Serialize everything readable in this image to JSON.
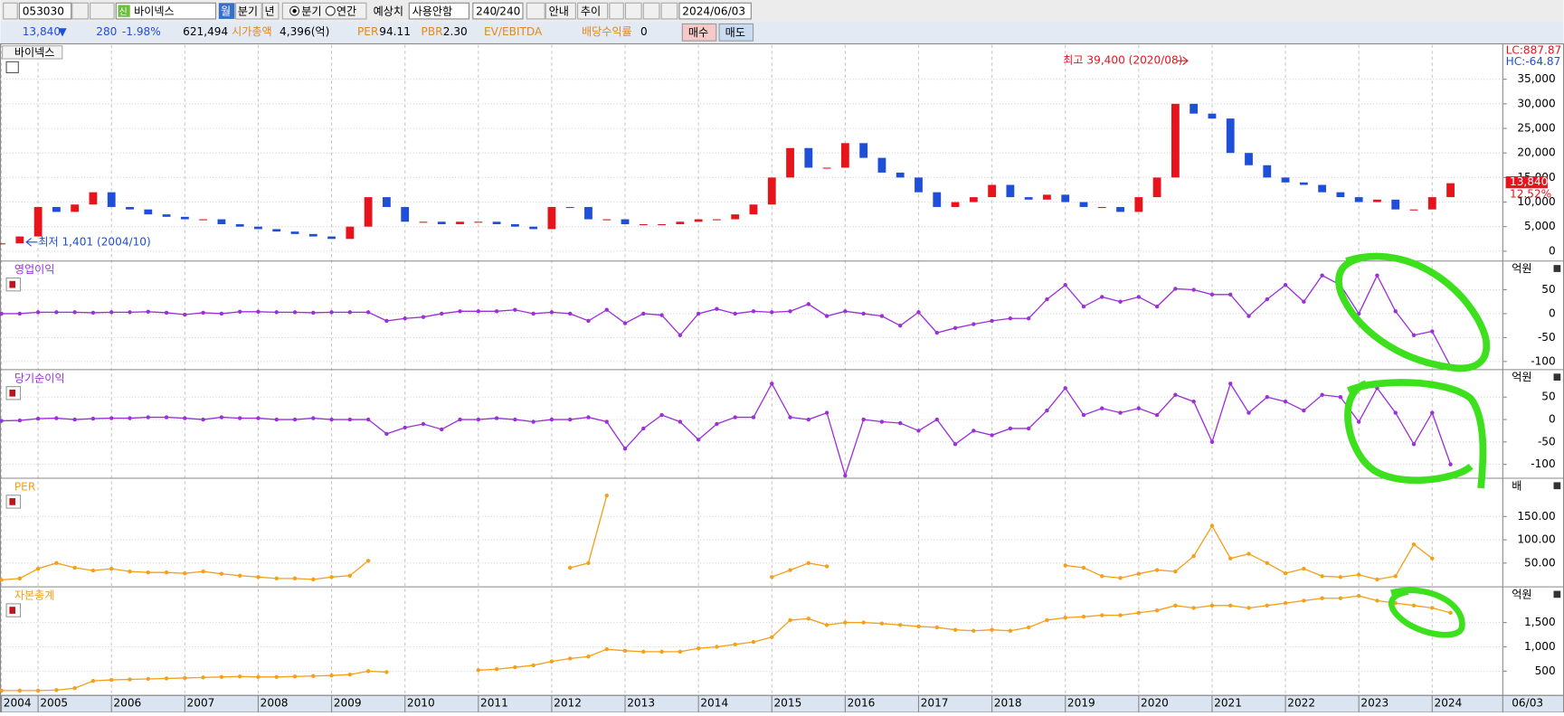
{
  "toolbar": {
    "code": "053030",
    "badge": "신",
    "name": "바이넥스",
    "period_buttons": [
      "월",
      "분기",
      "년"
    ],
    "radio": [
      "분기",
      "연간"
    ],
    "estimate_label": "예상치",
    "estimate_value": "사용안함",
    "count": "240",
    "count_total": "/240",
    "buttons": [
      "안내",
      "추이"
    ],
    "date": "2024/06/03"
  },
  "quote": {
    "price": "13,840",
    "arrow": "▼",
    "change": "280",
    "change_pct": "-1.98%",
    "volume": "621,494",
    "market_cap_label": "시가총액",
    "market_cap": "4,396(억)",
    "per_label": "PER",
    "per": "94.11",
    "pbr_label": "PBR",
    "pbr": "2.30",
    "ev_label": "EV/EBITDA",
    "div_label": "배당수익률",
    "div": "0",
    "buy": "매수",
    "sell": "매도"
  },
  "chart_data": [
    {
      "type": "candlestick",
      "title": "바이넥스",
      "up_color": "#e8141c",
      "down_color": "#1f4fd8",
      "annotations": [
        "최고 39,400 (2020/08)",
        "최저 1,401 (2004/10)"
      ],
      "lc_label": "LC:887.87",
      "hc_label": "HC:-64.87",
      "last_label": "13,840",
      "last_pct": "12.52%",
      "values": [
        1600,
        3000,
        9000,
        8000,
        9500,
        12000,
        9000,
        8500,
        7500,
        7000,
        6500,
        6500,
        5500,
        5000,
        4500,
        4000,
        3500,
        3000,
        2500,
        5000,
        11000,
        9000,
        6000,
        6000,
        5500,
        6000,
        6000,
        5500,
        5000,
        4500,
        9000,
        9000,
        6500,
        6500,
        5500,
        5500,
        5500,
        6000,
        6500,
        6500,
        7500,
        9500,
        15000,
        21000,
        17000,
        17000,
        22000,
        19000,
        16000,
        15000,
        12000,
        9000,
        10000,
        11000,
        13500,
        11000,
        10500,
        11500,
        10000,
        9000,
        9000,
        8000,
        11000,
        15000,
        30000,
        28000,
        27000,
        20000,
        17500,
        15000,
        14000,
        13500,
        12000,
        11000,
        10000,
        10500,
        8500,
        8500,
        11000,
        13840
      ],
      "ylim": [
        -2000,
        42000
      ],
      "yticks": [
        0,
        {
          "value": 5000,
          "label": "5,000"
        },
        {
          "value": 10000,
          "label": "10,000"
        },
        {
          "value": 15000,
          "label": "15,000"
        },
        {
          "value": 20000,
          "label": "20,000"
        },
        {
          "value": 25000,
          "label": "25,000"
        },
        {
          "value": 30000,
          "label": "30,000"
        },
        {
          "value": 35000,
          "label": "35,000"
        }
      ],
      "grid": true
    },
    {
      "type": "line",
      "title": "영업이익",
      "unit": "억원",
      "color": "#9b30d9",
      "values": [
        0,
        0,
        3,
        3,
        3,
        2,
        3,
        3,
        4,
        2,
        -2,
        2,
        0,
        4,
        4,
        3,
        3,
        2,
        3,
        3,
        3,
        -15,
        -10,
        -7,
        0,
        5,
        5,
        5,
        8,
        0,
        3,
        0,
        -15,
        8,
        -20,
        0,
        -3,
        -45,
        0,
        10,
        0,
        5,
        3,
        5,
        20,
        -5,
        5,
        0,
        -5,
        -25,
        3,
        -40,
        -30,
        -22,
        -15,
        -10,
        -10,
        30,
        60,
        15,
        35,
        25,
        35,
        15,
        52,
        50,
        40,
        40,
        -5,
        30,
        60,
        25,
        80,
        60,
        0,
        80,
        5,
        -45,
        -37,
        -110
      ],
      "ylim": [
        -115,
        108
      ],
      "yticks": [
        50,
        0,
        -50,
        -100
      ],
      "grid": true
    },
    {
      "type": "line",
      "title": "당기순이익",
      "unit": "억원",
      "color": "#9b30d9",
      "values": [
        -3,
        -2,
        2,
        3,
        0,
        2,
        3,
        3,
        5,
        5,
        3,
        0,
        5,
        3,
        3,
        0,
        0,
        3,
        0,
        0,
        0,
        -32,
        -18,
        -10,
        -22,
        0,
        0,
        3,
        0,
        -5,
        0,
        0,
        5,
        -5,
        -65,
        -20,
        10,
        -5,
        -45,
        -10,
        5,
        5,
        80,
        5,
        0,
        15,
        -125,
        0,
        -5,
        -8,
        -25,
        0,
        -55,
        -25,
        -35,
        -20,
        -20,
        20,
        70,
        10,
        25,
        15,
        25,
        10,
        55,
        40,
        -50,
        80,
        15,
        50,
        40,
        20,
        55,
        50,
        -5,
        70,
        15,
        -55,
        15,
        -100
      ],
      "ylim": [
        -131,
        109
      ],
      "yticks": [
        50,
        0,
        -50,
        -100
      ],
      "grid": true
    },
    {
      "type": "line",
      "title": "PER",
      "unit": "배",
      "color": "#f5a01a",
      "values": [
        14,
        17,
        38,
        50,
        40,
        34,
        38,
        32,
        30,
        30,
        28,
        32,
        27,
        23,
        20,
        17,
        17,
        15,
        20,
        23,
        55,
        null,
        null,
        null,
        null,
        null,
        null,
        null,
        null,
        null,
        null,
        40,
        50,
        195,
        null,
        null,
        null,
        null,
        null,
        null,
        null,
        null,
        20,
        35,
        50,
        43,
        null,
        null,
        null,
        null,
        null,
        null,
        null,
        null,
        null,
        null,
        null,
        null,
        45,
        40,
        22,
        18,
        27,
        35,
        32,
        65,
        130,
        60,
        70,
        50,
        28,
        38,
        22,
        20,
        25,
        15,
        22,
        90,
        60,
        null
      ],
      "ylim": [
        -1,
        230
      ],
      "yticks": [
        {
          "value": 50,
          "label": "50.00"
        },
        {
          "value": 100,
          "label": "100.00"
        },
        {
          "value": 150,
          "label": "150.00"
        }
      ],
      "grid": true
    },
    {
      "type": "line",
      "title": "자본총계",
      "unit": "억원",
      "color": "#f5a01a",
      "values": [
        100,
        100,
        100,
        110,
        150,
        300,
        320,
        330,
        340,
        350,
        360,
        370,
        380,
        390,
        380,
        380,
        390,
        400,
        410,
        430,
        500,
        480,
        null,
        null,
        null,
        null,
        520,
        540,
        580,
        620,
        700,
        760,
        800,
        950,
        920,
        900,
        900,
        900,
        970,
        1000,
        1050,
        1100,
        1200,
        1550,
        1580,
        1450,
        1500,
        1500,
        1480,
        1450,
        1420,
        1400,
        1350,
        1330,
        1350,
        1330,
        1400,
        1550,
        1600,
        1620,
        1650,
        1650,
        1700,
        1750,
        1850,
        1800,
        1850,
        1850,
        1800,
        1850,
        1900,
        1950,
        2000,
        2000,
        2050,
        1950,
        1900,
        1850,
        1800,
        1700
      ],
      "ylim": [
        0,
        2214
      ],
      "yticks": [
        500,
        {
          "value": 1000,
          "label": "1,000"
        },
        {
          "value": 1500,
          "label": "1,500"
        }
      ],
      "grid": true,
      "categories": [
        "2004",
        null,
        "2005",
        null,
        null,
        null,
        "2006",
        null,
        null,
        null,
        "2007",
        null,
        null,
        null,
        "2008",
        null,
        null,
        null,
        "2009",
        null,
        null,
        null,
        "2010",
        null,
        null,
        null,
        "2011",
        null,
        null,
        null,
        "2012",
        null,
        null,
        null,
        "2013",
        null,
        null,
        null,
        "2014",
        null,
        null,
        null,
        "2015",
        null,
        null,
        null,
        "2016",
        null,
        null,
        null,
        "2017",
        null,
        null,
        null,
        "2018",
        null,
        null,
        null,
        "2019",
        null,
        null,
        null,
        "2020",
        null,
        null,
        null,
        "2021",
        null,
        null,
        null,
        "2022",
        null,
        null,
        null,
        "2023",
        null,
        null,
        null,
        "2024",
        null
      ],
      "end_label": "06/03"
    }
  ]
}
